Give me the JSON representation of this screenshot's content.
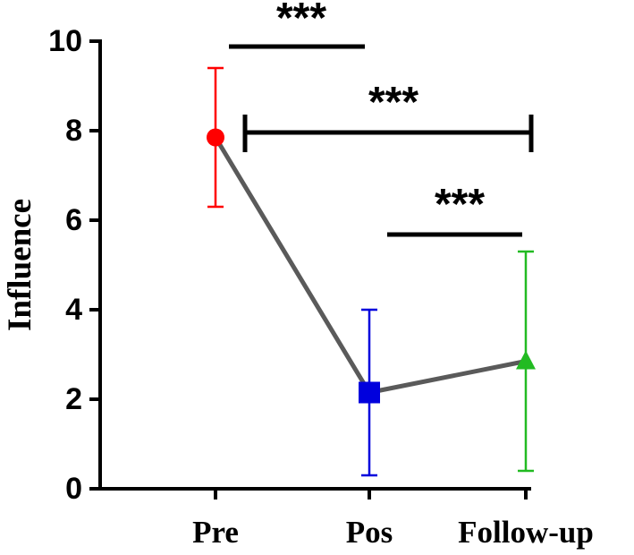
{
  "chart_data": {
    "type": "line",
    "title": "",
    "xlabel": "",
    "ylabel": "Influence",
    "ylim": [
      0,
      10
    ],
    "yticks": [
      "0",
      "2",
      "4",
      "6",
      "8",
      "10"
    ],
    "categories": [
      "Pre",
      "Pos",
      "Follow-up"
    ],
    "series": [
      {
        "values": [
          7.85,
          2.15,
          2.85
        ],
        "error_low": [
          6.3,
          0.3,
          0.4
        ],
        "error_high": [
          9.4,
          4.0,
          5.3
        ],
        "line_color": "#5a5a5a",
        "point_colors": [
          "#ff0000",
          "#0000dd",
          "#22bb22"
        ],
        "markers": [
          "circle",
          "square",
          "triangle"
        ]
      }
    ],
    "significance": [
      {
        "from": "Pre",
        "to": "Pos",
        "label": "***",
        "capped": false
      },
      {
        "from": "Pre",
        "to": "Follow-up",
        "label": "***",
        "capped": true
      },
      {
        "from": "Pos",
        "to": "Follow-up",
        "label": "***",
        "capped": false
      }
    ],
    "grid": false,
    "legend": "none"
  }
}
